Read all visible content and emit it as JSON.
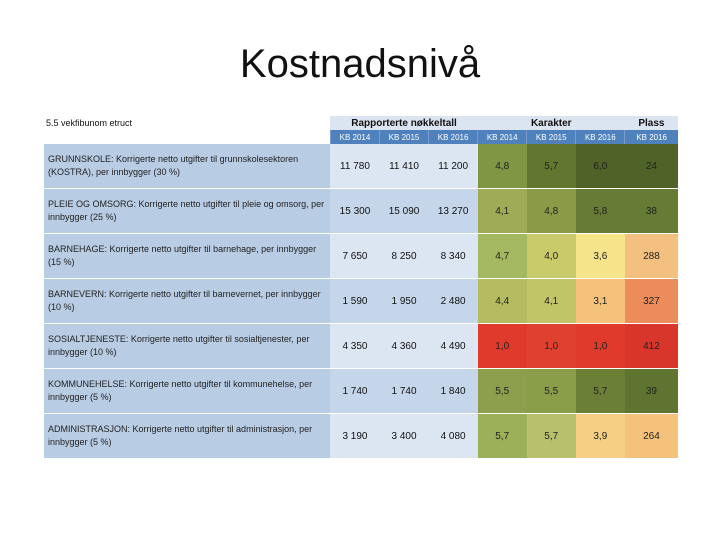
{
  "slide": {
    "title": "Kostnadsnivå"
  },
  "table": {
    "corner_label": "5.5  vekfibunom  etruct",
    "group_headers": {
      "reported": "Rapporterte nøkkeltall",
      "grade": "Karakter",
      "rank": "Plass"
    },
    "year_headers": [
      "KB 2014",
      "KB 2015",
      "KB 2016",
      "KB 2014",
      "KB 2015",
      "KB 2016",
      "KB 2016"
    ],
    "rows": [
      {
        "label": "GRUNNSKOLE: Korrigerte netto utgifter til grunnskolesektoren (KOSTRA), per innbygger (30 %)",
        "values": [
          "11 780",
          "11 410",
          "11 200"
        ],
        "grades": [
          "4,8",
          "5,7",
          "6,0"
        ],
        "rank": "24"
      },
      {
        "label": "PLEIE OG OMSORG: Korrigerte netto utgifter til pleie og omsorg, per innbygger (25 %)",
        "values": [
          "15 300",
          "15 090",
          "13 270"
        ],
        "grades": [
          "4,1",
          "4,8",
          "5,8"
        ],
        "rank": "38"
      },
      {
        "label": "BARNEHAGE: Korrigerte netto utgifter til barnehage, per innbygger (15 %)",
        "values": [
          "7 650",
          "8 250",
          "8 340"
        ],
        "grades": [
          "4,7",
          "4,0",
          "3,6"
        ],
        "rank": "288"
      },
      {
        "label": "BARNEVERN: Korrigerte netto utgifter til barnevernet, per innbygger (10 %)",
        "values": [
          "1 590",
          "1 950",
          "2 480"
        ],
        "grades": [
          "4,4",
          "4,1",
          "3,1"
        ],
        "rank": "327"
      },
      {
        "label": "SOSIALTJENESTE: Korrigerte netto utgifter til sosialtjenester, per innbygger (10 %)",
        "values": [
          "4 350",
          "4 360",
          "4 490"
        ],
        "grades": [
          "1,0",
          "1,0",
          "1,0"
        ],
        "rank": "412"
      },
      {
        "label": "KOMMUNEHELSE: Korrigerte netto utgifter til kommunehelse, per innbygger (5 %)",
        "values": [
          "1 740",
          "1 740",
          "1 840"
        ],
        "grades": [
          "5,5",
          "5,5",
          "5,7"
        ],
        "rank": "39"
      },
      {
        "label": "ADMINISTRASJON: Korrigerte netto utgifter til administrasjon, per innbygger (5 %)",
        "values": [
          "3 190",
          "3 400",
          "4 080"
        ],
        "grades": [
          "5,7",
          "5,7",
          "3,9"
        ],
        "rank": "264"
      }
    ]
  },
  "colors": {
    "grade_cells": [
      [
        "#7f9644",
        "#61772f",
        "#4f6228"
      ],
      [
        "#9fac55",
        "#8a9a47",
        "#667b33"
      ],
      [
        "#a3b85f",
        "#c9ca6a",
        "#f6e48a"
      ],
      [
        "#b4bb60",
        "#c2c468",
        "#f4c27a"
      ],
      [
        "#e03a2c",
        "#e0402f",
        "#e03a2c"
      ],
      [
        "#8d9f4c",
        "#8a9d49",
        "#6b7f36"
      ],
      [
        "#9cb057",
        "#b9c06b",
        "#f6cf84"
      ]
    ],
    "rank_cells": [
      "#4f6228",
      "#667b33",
      "#f3c07f",
      "#ec8c5b",
      "#d9362b",
      "#5f7430",
      "#f4c27a"
    ]
  }
}
